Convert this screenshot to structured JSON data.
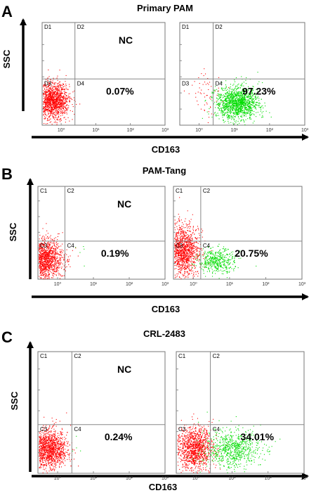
{
  "figure": {
    "x_axis_label": "CD163",
    "y_axis_label": "SSC"
  },
  "chart_data": [
    {
      "type": "scatter",
      "panel_letter": "A",
      "title": "Primary PAM",
      "xlabel": "CD163",
      "ylabel": "SSC",
      "x_scale": "log",
      "xlim": [
        1,
        1000
      ],
      "x_tick_labels": [
        "10⁰",
        "10¹",
        "10²",
        "10³"
      ],
      "plots": [
        {
          "condition_label": "NC",
          "quadrants": [
            "D1",
            "D2",
            "D3",
            "D4"
          ],
          "gate_x": 2.5,
          "gate_y_fraction": 0.45,
          "positive_percent_label": "0.07%",
          "positive_percent": 0.07,
          "clusters": [
            {
              "color": "#ff0000",
              "center_x": 0.55,
              "center_y_fraction": 0.24,
              "spread_decades": 0.24,
              "spread_y": 0.08,
              "count": 1400
            }
          ]
        },
        {
          "condition_label": "",
          "quadrants": [
            "D1",
            "D2",
            "D3",
            "D4"
          ],
          "gate_x": 2.5,
          "gate_y_fraction": 0.45,
          "positive_percent_label": "97.23%",
          "positive_percent": 97.23,
          "clusters": [
            {
              "color": "#ff0000",
              "center_x": 1.6,
              "center_y_fraction": 0.3,
              "spread_decades": 0.25,
              "spread_y": 0.09,
              "count": 60
            },
            {
              "color": "#00dd00",
              "center_x": 12,
              "center_y_fraction": 0.22,
              "spread_decades": 0.3,
              "spread_y": 0.07,
              "count": 1400
            }
          ]
        }
      ]
    },
    {
      "type": "scatter",
      "panel_letter": "B",
      "title": "PAM-Tang",
      "xlabel": "CD163",
      "ylabel": "SSC",
      "x_scale": "log",
      "xlim": [
        1,
        1000
      ],
      "x_tick_labels": [
        "10⁰",
        "10¹",
        "10²",
        "10³"
      ],
      "plots": [
        {
          "condition_label": "NC",
          "quadrants": [
            "C1",
            "C2",
            "C3",
            "C4"
          ],
          "gate_x": 1.6,
          "gate_y_fraction": 0.41,
          "positive_percent_label": "0.19%",
          "positive_percent": 0.19,
          "clusters": [
            {
              "color": "#ff0000",
              "center_x": 0.4,
              "center_y_fraction": 0.22,
              "spread_decades": 0.27,
              "spread_y": 0.1,
              "count": 1500
            },
            {
              "color": "#00dd00",
              "center_x": 3.5,
              "center_y_fraction": 0.25,
              "spread_decades": 0.15,
              "spread_y": 0.08,
              "count": 5
            }
          ]
        },
        {
          "condition_label": "",
          "quadrants": [
            "C1",
            "C2",
            "C3",
            "C4"
          ],
          "gate_x": 1.6,
          "gate_y_fraction": 0.41,
          "positive_percent_label": "20.75%",
          "positive_percent": 20.75,
          "clusters": [
            {
              "color": "#ff0000",
              "center_x": 0.5,
              "center_y_fraction": 0.3,
              "spread_decades": 0.22,
              "spread_y": 0.13,
              "count": 1300
            },
            {
              "color": "#00dd00",
              "center_x": 4.5,
              "center_y_fraction": 0.2,
              "spread_decades": 0.25,
              "spread_y": 0.06,
              "count": 450
            }
          ]
        }
      ]
    },
    {
      "type": "scatter",
      "panel_letter": "C",
      "title": "CRL-2483",
      "xlabel": "CD163",
      "ylabel": "SSC",
      "x_scale": "log",
      "xlim": [
        1,
        1000
      ],
      "x_tick_labels": [
        "10⁰",
        "10¹",
        "10²",
        "10³"
      ],
      "plots": [
        {
          "condition_label": "NC",
          "quadrants": [
            "C1",
            "C2",
            "C3",
            "C4"
          ],
          "gate_x": 2.5,
          "gate_y_fraction": 0.4,
          "positive_percent_label": "0.24%",
          "positive_percent": 0.24,
          "clusters": [
            {
              "color": "#ff0000",
              "center_x": 0.55,
              "center_y_fraction": 0.2,
              "spread_decades": 0.26,
              "spread_y": 0.07,
              "count": 1400
            },
            {
              "color": "#00dd00",
              "center_x": 3.2,
              "center_y_fraction": 0.2,
              "spread_decades": 0.1,
              "spread_y": 0.05,
              "count": 4
            }
          ]
        },
        {
          "condition_label": "",
          "quadrants": [
            "C1",
            "C2",
            "C3",
            "C4"
          ],
          "gate_x": 2.5,
          "gate_y_fraction": 0.4,
          "positive_percent_label": "34.01%",
          "positive_percent": 34.01,
          "clusters": [
            {
              "color": "#ff0000",
              "center_x": 0.9,
              "center_y_fraction": 0.21,
              "spread_decades": 0.25,
              "spread_y": 0.08,
              "count": 1200
            },
            {
              "color": "#00dd00",
              "center_x": 10,
              "center_y_fraction": 0.2,
              "spread_decades": 0.4,
              "spread_y": 0.07,
              "count": 750
            }
          ]
        }
      ]
    }
  ]
}
